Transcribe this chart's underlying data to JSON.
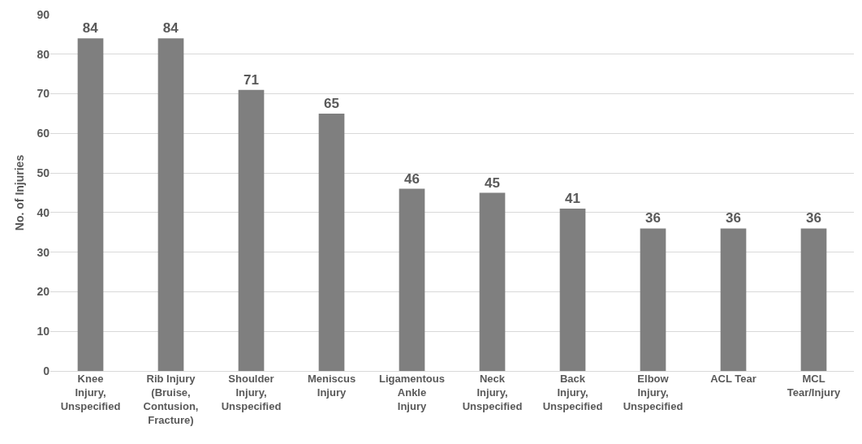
{
  "chart_data": {
    "type": "bar",
    "ylabel": "No. of Injuries",
    "categories": [
      "Knee Injury, Unspecified",
      "Rib Injury (Bruise, Contusion, Fracture)",
      "Shoulder Injury, Unspecified",
      "Meniscus Injury",
      "Ligamentous Ankle Injury",
      "Neck Injury, Unspecified",
      "Back Injury, Unspecified",
      "Elbow Injury, Unspecified",
      "ACL Tear",
      "MCL Tear/Injury"
    ],
    "values": [
      84,
      84,
      71,
      65,
      46,
      45,
      41,
      36,
      36,
      36
    ],
    "color": "#7f7f7f",
    "ylim": [
      0,
      90
    ],
    "yticks": [
      0,
      10,
      20,
      30,
      40,
      50,
      60,
      70,
      80,
      90
    ],
    "grid": "y",
    "data_labels": true,
    "legend": false
  }
}
